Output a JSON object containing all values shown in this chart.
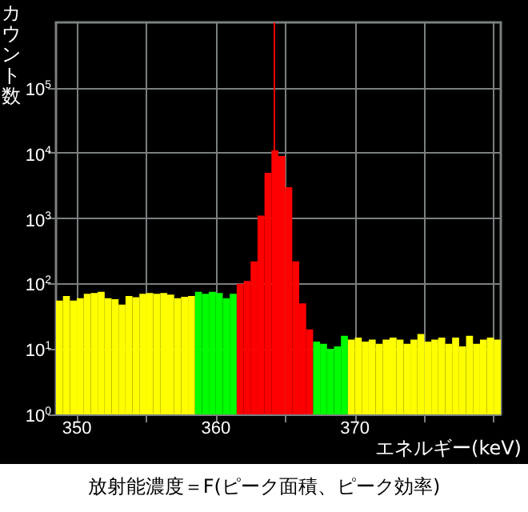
{
  "chart_data": {
    "type": "histogram",
    "ylabel": "カウント数",
    "xlabel": "エネルギー(keV)",
    "annotations": [
      "放射能濃度＝F(ピーク面積、ピーク効率)"
    ],
    "bins": [
      348.5,
      349,
      349.5,
      350,
      350.5,
      351,
      351.5,
      352,
      352.5,
      353,
      353.5,
      354,
      354.5,
      355,
      355.5,
      356,
      356.5,
      357,
      357.5,
      358,
      358.5,
      359,
      359.5,
      360,
      360.5,
      361,
      361.5,
      362,
      362.5,
      363,
      363.5,
      364,
      364.5,
      365,
      365.5,
      366,
      366.5,
      367,
      367.5,
      368,
      368.5,
      369,
      369.5,
      370,
      370.5,
      371,
      371.5,
      372,
      372.5,
      373,
      373.5,
      374,
      374.5,
      375,
      375.5,
      376,
      376.5,
      377,
      377.5,
      378,
      378.5,
      379,
      379.5,
      380,
      380.5
    ],
    "values": [
      55,
      65,
      55,
      60,
      70,
      72,
      75,
      60,
      58,
      48,
      65,
      62,
      70,
      72,
      70,
      72,
      68,
      60,
      63,
      65,
      75,
      70,
      75,
      72,
      60,
      70,
      100,
      110,
      220,
      1100,
      5000,
      11000,
      9000,
      3000,
      220,
      50,
      20,
      13,
      12,
      10,
      11,
      16,
      14,
      15,
      13,
      14,
      12,
      14,
      15,
      14,
      12,
      14,
      17,
      13,
      14,
      15,
      12,
      15,
      11,
      16,
      12,
      14,
      15,
      14
    ],
    "colors": [
      "#ffff00",
      "#ffff00",
      "#ffff00",
      "#ffff00",
      "#ffff00",
      "#ffff00",
      "#ffff00",
      "#ffff00",
      "#ffff00",
      "#ffff00",
      "#ffff00",
      "#ffff00",
      "#ffff00",
      "#ffff00",
      "#ffff00",
      "#ffff00",
      "#ffff00",
      "#ffff00",
      "#ffff00",
      "#ffff00",
      "#00ff00",
      "#00ff00",
      "#00ff00",
      "#00ff00",
      "#00ff00",
      "#00ff00",
      "#ff0000",
      "#ff0000",
      "#ff0000",
      "#ff0000",
      "#ff0000",
      "#ff0000",
      "#ff0000",
      "#ff0000",
      "#ff0000",
      "#ff0000",
      "#ff0000",
      "#00ff00",
      "#00ff00",
      "#00ff00",
      "#00ff00",
      "#00ff00",
      "#ffff00",
      "#ffff00",
      "#ffff00",
      "#ffff00",
      "#ffff00",
      "#ffff00",
      "#ffff00",
      "#ffff00",
      "#ffff00",
      "#ffff00",
      "#ffff00",
      "#ffff00",
      "#ffff00",
      "#ffff00",
      "#ffff00",
      "#ffff00",
      "#ffff00",
      "#ffff00",
      "#ffff00",
      "#ffff00",
      "#ffff00",
      "#ffff00"
    ],
    "xlim": [
      348.5,
      380.5
    ],
    "xticks": [
      350,
      {
        "value": 355,
        "label": null
      },
      360,
      {
        "value": 365,
        "label": null
      },
      370,
      {
        "value": 375,
        "label": null
      },
      {
        "value": 380,
        "label": null
      }
    ],
    "ylim": [
      1,
      1000000
    ],
    "yticks": [
      {
        "value": 1,
        "label": "10$^{0}$"
      },
      {
        "value": 10,
        "label": "10$^{1}$"
      },
      {
        "value": 100,
        "label": "10$^{2}$"
      },
      {
        "value": 1000,
        "label": "10$^{3}$"
      },
      {
        "value": 10000,
        "label": "10$^{4}$"
      },
      {
        "value": 100000,
        "label": "10$^{5}$"
      }
    ],
    "log": true,
    "grid": true,
    "ref_lines": [
      {
        "axis": "x",
        "value": 364.2,
        "color": "#ff0000"
      }
    ]
  }
}
